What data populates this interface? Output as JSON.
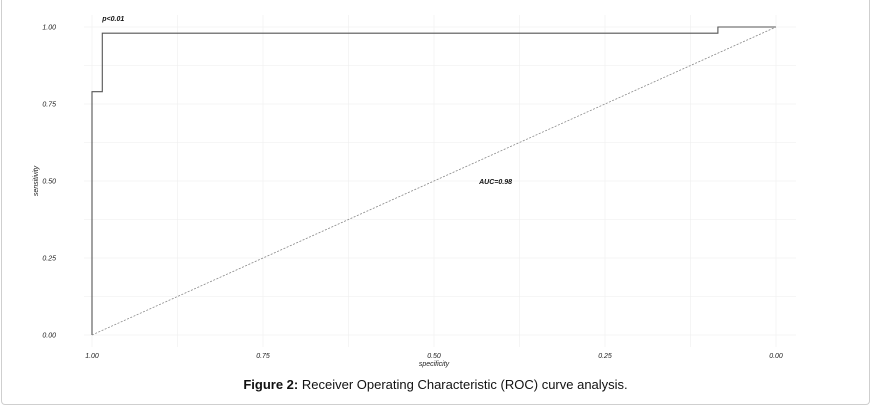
{
  "chart_data": {
    "type": "line",
    "xlabel": "specificity",
    "ylabel": "sensitivity",
    "xlim": [
      1.0,
      0.0
    ],
    "ylim": [
      0.0,
      1.0
    ],
    "x_reversed": true,
    "x_ticks": [
      "1.00",
      "0.75",
      "0.50",
      "0.25",
      "0.00"
    ],
    "x_tick_values": [
      1.0,
      0.75,
      0.5,
      0.25,
      0.0
    ],
    "y_ticks": [
      "0.00",
      "0.25",
      "0.50",
      "0.75",
      "1.00"
    ],
    "y_tick_values": [
      0.0,
      0.25,
      0.5,
      0.75,
      1.0
    ],
    "grid": true,
    "series": [
      {
        "style": "step",
        "color": "#555555",
        "points": [
          {
            "specificity": 1.0,
            "sensitivity": 0.0
          },
          {
            "specificity": 1.0,
            "sensitivity": 0.79
          },
          {
            "specificity": 0.985,
            "sensitivity": 0.79
          },
          {
            "specificity": 0.985,
            "sensitivity": 0.98
          },
          {
            "specificity": 0.085,
            "sensitivity": 0.98
          },
          {
            "specificity": 0.085,
            "sensitivity": 1.0
          },
          {
            "specificity": 0.0,
            "sensitivity": 1.0
          }
        ]
      },
      {
        "style": "dashed-reference",
        "color": "#888888",
        "points": [
          {
            "specificity": 1.0,
            "sensitivity": 0.0
          },
          {
            "specificity": 0.0,
            "sensitivity": 1.0
          }
        ]
      }
    ],
    "annotations": [
      {
        "text": "p<0.01",
        "specificity": 0.985,
        "sensitivity": 1.02
      },
      {
        "text": "AUC=0.98",
        "specificity": 0.41,
        "sensitivity": 0.49
      }
    ]
  },
  "caption": {
    "label": "Figure 2:",
    "text": " Receiver Operating Characteristic (ROC) curve analysis."
  }
}
